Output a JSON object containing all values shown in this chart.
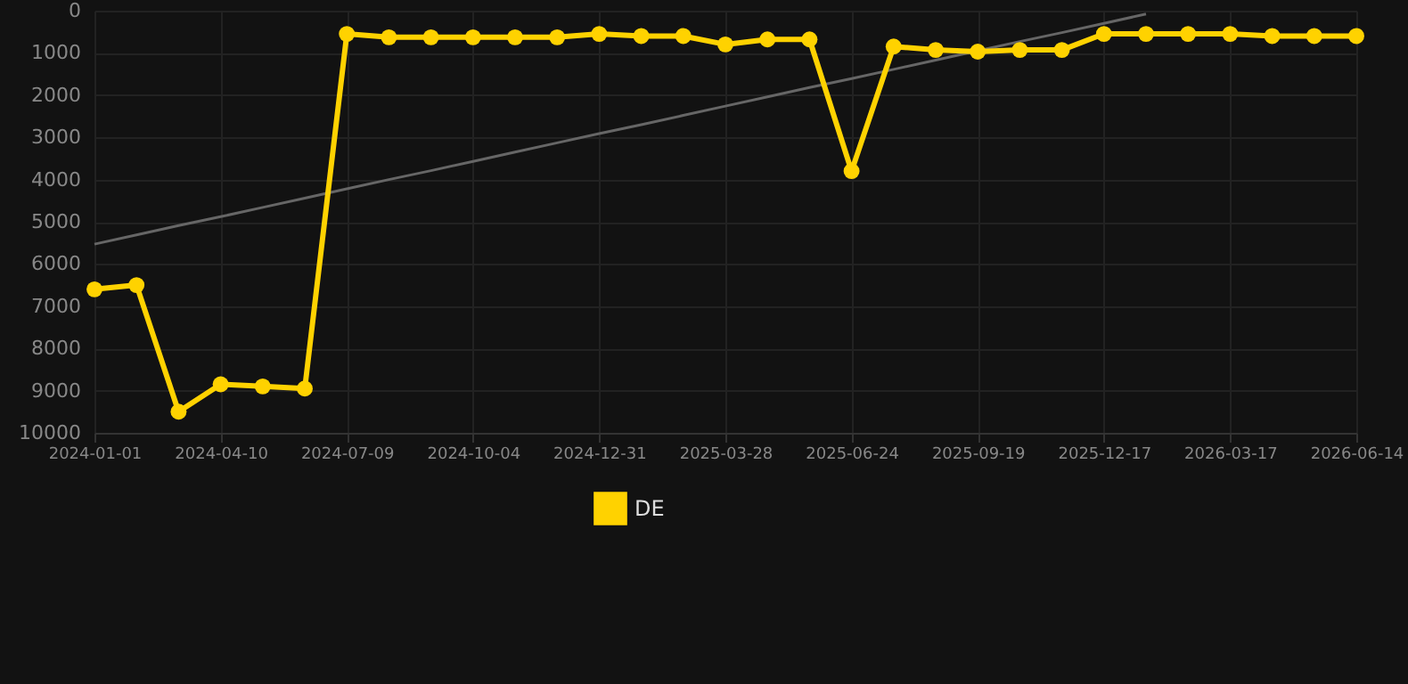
{
  "chart_data": {
    "type": "line",
    "categories": [
      "2024-01-01",
      null,
      null,
      "2024-04-10",
      null,
      null,
      "2024-07-09",
      null,
      null,
      "2024-10-04",
      null,
      null,
      "2024-12-31",
      null,
      null,
      "2025-03-28",
      null,
      null,
      "2025-06-24",
      null,
      null,
      "2025-09-19",
      null,
      null,
      "2025-12-17",
      null,
      null,
      "2026-03-17",
      null,
      null,
      "2026-06-14"
    ],
    "series": [
      {
        "name": "DE",
        "color": "#ffd200",
        "marker": "circle",
        "values": [
          6600,
          6500,
          9500,
          8850,
          8900,
          8950,
          550,
          630,
          630,
          630,
          630,
          630,
          550,
          600,
          600,
          800,
          680,
          680,
          3800,
          850,
          930,
          970,
          930,
          930,
          550,
          550,
          550,
          550,
          600,
          600,
          600
        ]
      },
      {
        "type": "line",
        "color": "#666666",
        "marker": "none",
        "values": [
          5530,
          5310,
          5090,
          4880,
          4660,
          4440,
          4220,
          4000,
          3790,
          3570,
          3350,
          3130,
          2910,
          2700,
          2480,
          2260,
          2040,
          1820,
          1610,
          1390,
          1170,
          950,
          730,
          520,
          300,
          80,
          null,
          null,
          null,
          null,
          null
        ]
      }
    ],
    "ylim": [
      10000,
      0
    ],
    "yticks": [
      0,
      1000,
      2000,
      3000,
      4000,
      5000,
      6000,
      7000,
      8000,
      9000,
      10000
    ],
    "grid": true,
    "legend": "bottom"
  }
}
